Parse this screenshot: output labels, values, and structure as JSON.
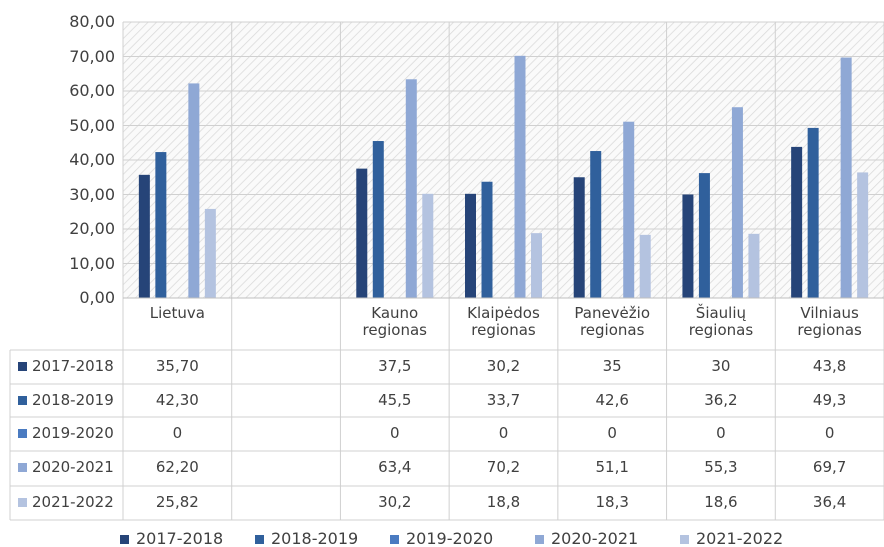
{
  "chart_data": {
    "type": "bar",
    "categories": [
      "Lietuva",
      null,
      "Kauno regionas",
      "Klaipėdos regionas",
      "Panevėžio regionas",
      "Šiaulių regionas",
      "Vilniaus regionas"
    ],
    "series": [
      {
        "name": "2017-2018",
        "color": "#264478",
        "values": [
          35.7,
          null,
          37.5,
          30.2,
          35,
          30,
          43.8
        ],
        "value_labels": [
          "35,70",
          null,
          "37,5",
          "30,2",
          "35",
          "30",
          "43,8"
        ]
      },
      {
        "name": "2018-2019",
        "color": "#30609c",
        "values": [
          42.3,
          null,
          45.5,
          33.7,
          42.6,
          36.2,
          49.3
        ],
        "value_labels": [
          "42,30",
          null,
          "45,5",
          "33,7",
          "42,6",
          "36,2",
          "49,3"
        ]
      },
      {
        "name": "2019-2020",
        "color": "#4a7bc1",
        "values": [
          0,
          null,
          0,
          0,
          0,
          0,
          0
        ],
        "value_labels": [
          "0",
          null,
          "0",
          "0",
          "0",
          "0",
          "0"
        ]
      },
      {
        "name": "2020-2021",
        "color": "#8fa8d5",
        "values": [
          62.2,
          null,
          63.4,
          70.2,
          51.1,
          55.3,
          69.7
        ],
        "value_labels": [
          "62,20",
          null,
          "63,4",
          "70,2",
          "51,1",
          "55,3",
          "69,7"
        ]
      },
      {
        "name": "2021-2022",
        "color": "#b4c3e0",
        "values": [
          25.82,
          null,
          30.2,
          18.8,
          18.3,
          18.6,
          36.4
        ],
        "value_labels": [
          "25,82",
          null,
          "30,2",
          "18,8",
          "18,3",
          "18,6",
          "36,4"
        ]
      }
    ],
    "ylim": [
      0,
      80
    ],
    "yticks": [
      {
        "value": 0,
        "label": "0,00"
      },
      {
        "value": 10,
        "label": "10,00"
      },
      {
        "value": 20,
        "label": "20,00"
      },
      {
        "value": 30,
        "label": "30,00"
      },
      {
        "value": 40,
        "label": "40,00"
      },
      {
        "value": 50,
        "label": "50,00"
      },
      {
        "value": 60,
        "label": "60,00"
      },
      {
        "value": 70,
        "label": "70,00"
      },
      {
        "value": 80,
        "label": "80,00"
      }
    ],
    "grid": true
  }
}
